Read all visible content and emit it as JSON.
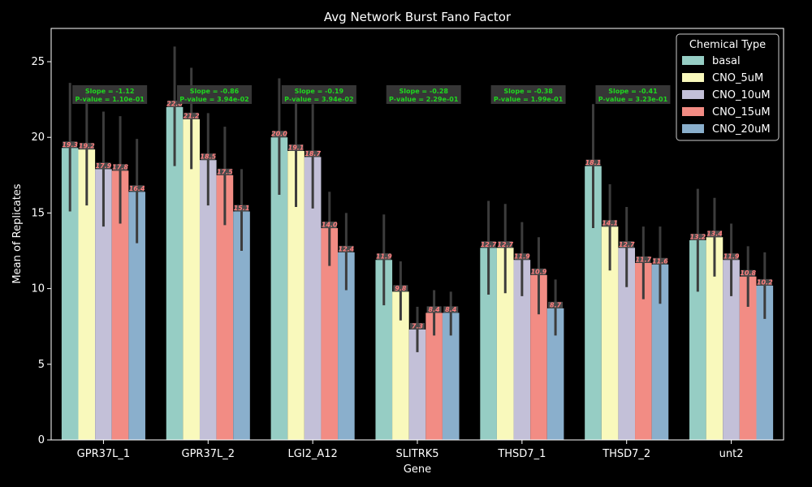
{
  "chart_data": {
    "type": "bar",
    "title": "Avg Network Burst Fano Factor",
    "xlabel": "Gene",
    "ylabel": "Mean of Replicates",
    "ylim": [
      0,
      27.2
    ],
    "yticks": [
      0,
      5,
      10,
      15,
      20,
      25
    ],
    "grid": false,
    "legend": {
      "title": "Chemical Type",
      "placement": "top-right"
    },
    "categories": [
      "GPR37L_1",
      "GPR37L_2",
      "LGI2_A12",
      "SLITRK5",
      "THSD7_1",
      "THSD7_2",
      "unt2"
    ],
    "series": [
      {
        "name": "basal",
        "color": "#96cdc4",
        "values": [
          19.3,
          22.0,
          20.0,
          11.9,
          12.7,
          18.1,
          13.2
        ],
        "labels": [
          "19.3",
          "22.0",
          "20.0",
          "11.9",
          "12.7",
          "18.1",
          "13.2"
        ],
        "err_low": [
          15.1,
          18.1,
          16.2,
          8.9,
          9.6,
          14.0,
          9.8
        ],
        "err_high": [
          23.6,
          26.0,
          23.9,
          14.9,
          15.8,
          22.2,
          16.6
        ]
      },
      {
        "name": "CNO_5uM",
        "color": "#f9f9bc",
        "values": [
          19.2,
          21.2,
          19.1,
          9.8,
          12.7,
          14.1,
          13.4
        ],
        "labels": [
          "19.2",
          "21.2",
          "19.1",
          "9.8",
          "12.7",
          "14.1",
          "13.4"
        ],
        "err_low": [
          15.5,
          17.9,
          15.4,
          7.9,
          9.7,
          11.2,
          10.8
        ],
        "err_high": [
          23.0,
          24.6,
          22.8,
          11.8,
          15.6,
          16.9,
          16.0
        ]
      },
      {
        "name": "CNO_10uM",
        "color": "#c3c0d8",
        "values": [
          17.9,
          18.5,
          18.7,
          7.3,
          11.9,
          12.7,
          11.9
        ],
        "labels": [
          "17.9",
          "18.5",
          "18.7",
          "7.3",
          "11.9",
          "12.7",
          "11.9"
        ],
        "err_low": [
          14.1,
          15.5,
          15.3,
          5.8,
          9.5,
          10.1,
          9.5
        ],
        "err_high": [
          21.7,
          21.6,
          22.2,
          8.8,
          14.4,
          15.4,
          14.3
        ]
      },
      {
        "name": "CNO_15uM",
        "color": "#f28c84",
        "values": [
          17.8,
          17.5,
          14.0,
          8.4,
          10.9,
          11.7,
          10.8
        ],
        "labels": [
          "17.8",
          "17.5",
          "14.0",
          "8.4",
          "10.9",
          "11.7",
          "10.8"
        ],
        "err_low": [
          14.3,
          14.2,
          11.5,
          6.9,
          8.3,
          9.3,
          8.8
        ],
        "err_high": [
          21.4,
          20.7,
          16.4,
          9.9,
          13.4,
          14.1,
          12.8
        ]
      },
      {
        "name": "CNO_20uM",
        "color": "#8aafcc",
        "values": [
          16.4,
          15.1,
          12.4,
          8.4,
          8.7,
          11.6,
          10.2
        ],
        "labels": [
          "16.4",
          "15.1",
          "12.4",
          "8.4",
          "8.7",
          "11.6",
          "10.2"
        ],
        "err_low": [
          13.0,
          12.5,
          9.9,
          6.9,
          6.9,
          9.0,
          8.0
        ],
        "err_high": [
          19.9,
          17.9,
          15.0,
          9.8,
          10.6,
          14.1,
          12.4
        ]
      }
    ],
    "annotations": [
      {
        "line1": "Slope = -1.12",
        "line2": "P-value = 1.10e-01"
      },
      {
        "line1": "Slope = -0.86",
        "line2": "P-value = 3.94e-02"
      },
      {
        "line1": "Slope = -0.19",
        "line2": "P-value = 3.94e-02"
      },
      {
        "line1": "Slope = -0.28",
        "line2": "P-value = 2.29e-01"
      },
      {
        "line1": "Slope = -0.38",
        "line2": "P-value = 1.99e-01"
      },
      {
        "line1": "Slope = -0.41",
        "line2": "P-value = 3.23e-01"
      },
      {
        "line1": "Slope = -0.33",
        "line2": "P-value = 3.23e-01"
      }
    ]
  }
}
